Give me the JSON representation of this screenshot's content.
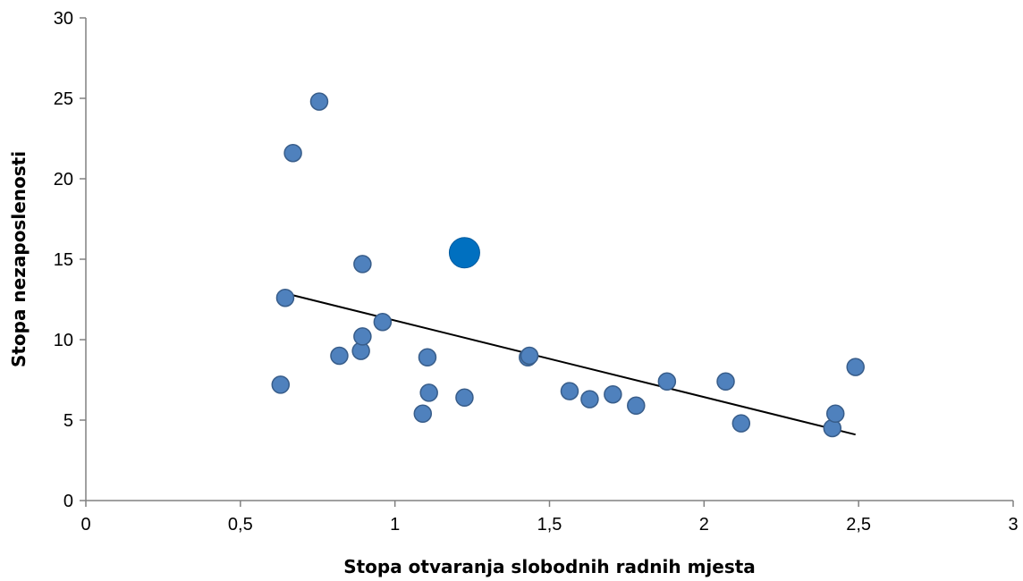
{
  "chart_data": {
    "type": "scatter",
    "title": "",
    "xlabel": "Stopa otvaranja slobodnih radnih mjesta",
    "ylabel": "Stopa nezaposlenosti",
    "xlim": [
      0,
      3
    ],
    "ylim": [
      0,
      30
    ],
    "x_ticks": [
      "0",
      "0,5",
      "1",
      "1,5",
      "2",
      "2,5",
      "3"
    ],
    "y_ticks": [
      "0",
      "5",
      "10",
      "15",
      "20",
      "25",
      "30"
    ],
    "grid": false,
    "legend": "none",
    "point_color": "#4f81bd",
    "highlight_color": "#0070c0",
    "points": [
      {
        "x": 0.63,
        "y": 7.2
      },
      {
        "x": 0.645,
        "y": 12.6
      },
      {
        "x": 0.67,
        "y": 21.6
      },
      {
        "x": 0.755,
        "y": 24.8
      },
      {
        "x": 0.82,
        "y": 9.0
      },
      {
        "x": 0.89,
        "y": 9.3
      },
      {
        "x": 0.895,
        "y": 10.2
      },
      {
        "x": 0.895,
        "y": 14.7
      },
      {
        "x": 0.96,
        "y": 11.1
      },
      {
        "x": 1.09,
        "y": 5.4
      },
      {
        "x": 1.105,
        "y": 8.9
      },
      {
        "x": 1.11,
        "y": 6.7
      },
      {
        "x": 1.225,
        "y": 6.4
      },
      {
        "x": 1.43,
        "y": 8.9
      },
      {
        "x": 1.435,
        "y": 9.0
      },
      {
        "x": 1.565,
        "y": 6.8
      },
      {
        "x": 1.63,
        "y": 6.3
      },
      {
        "x": 1.705,
        "y": 6.6
      },
      {
        "x": 1.78,
        "y": 5.9
      },
      {
        "x": 1.88,
        "y": 7.4
      },
      {
        "x": 2.07,
        "y": 7.4
      },
      {
        "x": 2.12,
        "y": 4.8
      },
      {
        "x": 2.415,
        "y": 4.5
      },
      {
        "x": 2.425,
        "y": 5.4
      },
      {
        "x": 2.49,
        "y": 8.3
      }
    ],
    "highlight_point": {
      "x": 1.225,
      "y": 15.4
    },
    "trendline": {
      "x": [
        0.63,
        2.49
      ],
      "y": [
        12.95,
        4.1
      ]
    }
  }
}
